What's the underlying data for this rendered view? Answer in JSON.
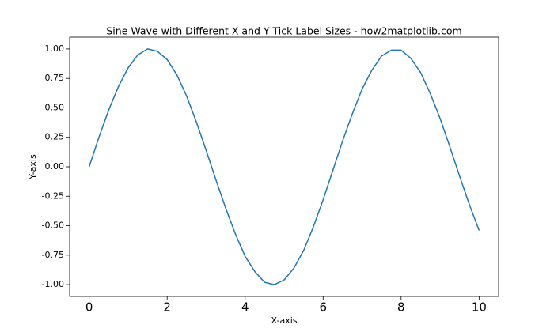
{
  "chart_data": {
    "type": "line",
    "title": "Sine Wave with Different X and Y Tick Label Sizes - how2matplotlib.com",
    "xlabel": "X-axis",
    "ylabel": "Y-axis",
    "x": [
      0,
      0.25,
      0.5,
      0.75,
      1,
      1.25,
      1.5,
      1.75,
      2,
      2.25,
      2.5,
      2.75,
      3,
      3.25,
      3.5,
      3.75,
      4,
      4.25,
      4.5,
      4.75,
      5,
      5.25,
      5.5,
      5.75,
      6,
      6.25,
      6.5,
      6.75,
      7,
      7.25,
      7.5,
      7.75,
      8,
      8.25,
      8.5,
      8.75,
      9,
      9.25,
      9.5,
      9.75,
      10
    ],
    "values": [
      0,
      0.25,
      0.48,
      0.68,
      0.84,
      0.95,
      1.0,
      0.98,
      0.91,
      0.78,
      0.6,
      0.38,
      0.14,
      -0.11,
      -0.35,
      -0.57,
      -0.76,
      -0.89,
      -0.98,
      -1.0,
      -0.96,
      -0.86,
      -0.71,
      -0.51,
      -0.28,
      -0.03,
      0.22,
      0.45,
      0.66,
      0.82,
      0.94,
      0.99,
      0.99,
      0.92,
      0.8,
      0.62,
      0.41,
      0.17,
      -0.08,
      -0.32,
      -0.54
    ],
    "color": "#1f77b4",
    "xlim": [
      -0.5,
      10.5
    ],
    "ylim": [
      -1.1,
      1.1
    ],
    "xticks": [
      0,
      2,
      4,
      6,
      8,
      10
    ],
    "yticks": [
      {
        "value": -1,
        "label": "-1.00"
      },
      {
        "value": -0.75,
        "label": "-0.75"
      },
      {
        "value": -0.5,
        "label": "-0.50"
      },
      {
        "value": -0.25,
        "label": "-0.25"
      },
      {
        "value": 0,
        "label": "0.00"
      },
      {
        "value": 0.25,
        "label": "0.25"
      },
      {
        "value": 0.5,
        "label": "0.50"
      },
      {
        "value": 0.75,
        "label": "0.75"
      },
      {
        "value": 1,
        "label": "1.00"
      }
    ],
    "grid": false
  }
}
